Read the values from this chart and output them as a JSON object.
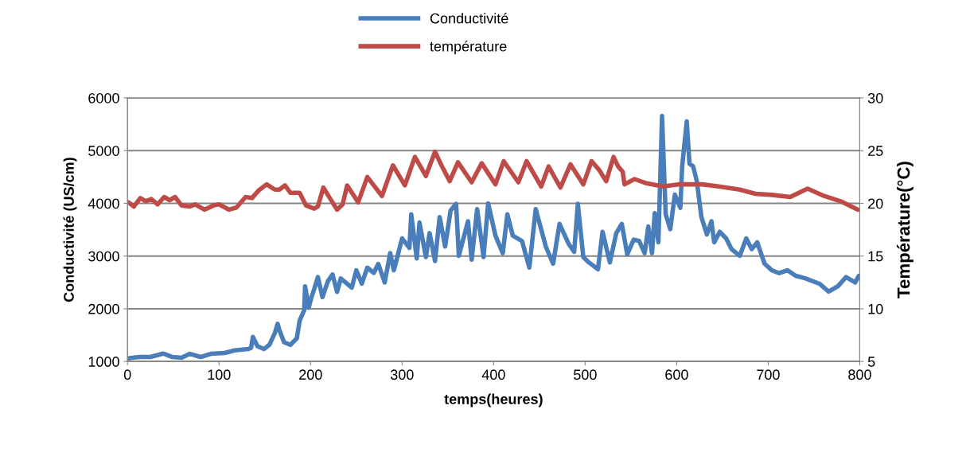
{
  "chart_data": {
    "type": "line",
    "xlabel": "temps(heures)",
    "ylabel": "Conductivité (US/cm)",
    "y2label": "Température(°C)",
    "xlim": [
      0,
      800
    ],
    "xticks": [
      0,
      100,
      200,
      300,
      400,
      500,
      600,
      700,
      800
    ],
    "ylim": [
      1000,
      6000
    ],
    "yticks": [
      1000,
      2000,
      3000,
      4000,
      5000,
      6000
    ],
    "y2lim": [
      5,
      30
    ],
    "y2ticks": [
      5,
      10,
      15,
      20,
      25,
      30
    ],
    "grid": "y",
    "legend": "top",
    "marker": "none",
    "line_style": "solid",
    "series": [
      {
        "name": "Conductivité",
        "color": "#4a7ebb",
        "x": [
          0,
          13,
          25,
          39,
          49,
          59,
          68,
          80,
          91,
          106,
          117,
          132,
          135,
          137,
          142,
          149,
          155,
          161,
          164,
          166,
          171,
          178,
          185,
          188,
          193,
          194,
          198,
          201,
          204,
          208,
          213,
          219,
          224,
          229,
          233,
          245,
          250,
          256,
          262,
          269,
          274,
          281,
          287,
          291,
          300,
          308,
          310,
          316,
          319,
          326,
          330,
          336,
          341,
          347,
          353,
          359,
          362,
          372,
          376,
          382,
          389,
          394,
          402,
          410,
          415,
          421,
          431,
          439,
          446,
          457,
          465,
          472,
          482,
          488,
          492,
          498,
          504,
          514,
          519,
          527,
          534,
          540,
          546,
          553,
          559,
          565,
          569,
          573,
          576,
          580,
          584,
          588,
          593,
          598,
          604,
          606,
          611,
          614,
          618,
          622,
          627,
          633,
          638,
          641,
          647,
          654,
          660,
          669,
          676,
          682,
          688,
          696,
          704,
          712,
          721,
          730,
          741,
          756,
          766,
          776,
          785,
          795,
          799
        ],
        "values": [
          1060,
          1085,
          1085,
          1150,
          1085,
          1070,
          1145,
          1085,
          1145,
          1160,
          1210,
          1235,
          1260,
          1465,
          1290,
          1235,
          1315,
          1540,
          1715,
          1590,
          1365,
          1315,
          1440,
          1770,
          1970,
          2425,
          2020,
          2220,
          2375,
          2600,
          2220,
          2525,
          2650,
          2320,
          2575,
          2400,
          2730,
          2475,
          2780,
          2680,
          2850,
          2500,
          3055,
          2730,
          3335,
          3155,
          3790,
          2955,
          3635,
          2980,
          3435,
          2905,
          3740,
          3180,
          3865,
          3990,
          3005,
          3660,
          2930,
          3890,
          2980,
          4000,
          3385,
          3055,
          3790,
          3385,
          3285,
          2780,
          3890,
          3180,
          2855,
          3610,
          3230,
          3080,
          3990,
          2980,
          2880,
          2750,
          3460,
          2880,
          3435,
          3610,
          3030,
          3310,
          3285,
          3055,
          3560,
          3055,
          3815,
          3260,
          5655,
          3790,
          3510,
          4165,
          3915,
          4700,
          5555,
          4750,
          4700,
          4420,
          3740,
          3410,
          3660,
          3260,
          3460,
          3335,
          3130,
          3005,
          3335,
          3130,
          3260,
          2855,
          2730,
          2675,
          2730,
          2625,
          2575,
          2475,
          2325,
          2425,
          2600,
          2500,
          2625
        ]
      },
      {
        "name": "température",
        "color": "#be4b48",
        "axis": "y2",
        "x": [
          1,
          7,
          14,
          20,
          26,
          33,
          40,
          46,
          52,
          59,
          68,
          74,
          84,
          94,
          100,
          111,
          119,
          129,
          136,
          143,
          152,
          161,
          166,
          172,
          178,
          188,
          195,
          204,
          208,
          214,
          221,
          229,
          235,
          240,
          252,
          262,
          278,
          290,
          303,
          314,
          326,
          336,
          343,
          352,
          361,
          376,
          387,
          402,
          411,
          427,
          436,
          452,
          460,
          473,
          484,
          498,
          507,
          515,
          523,
          531,
          536,
          541,
          543,
          554,
          567,
          585,
          602,
          628,
          646,
          669,
          686,
          704,
          724,
          743,
          761,
          779,
          798
        ],
        "values": [
          20.1,
          19.7,
          20.5,
          20.2,
          20.4,
          19.9,
          20.6,
          20.3,
          20.6,
          19.8,
          19.7,
          19.9,
          19.4,
          19.8,
          19.9,
          19.4,
          19.6,
          20.6,
          20.5,
          21.2,
          21.8,
          21.3,
          21.3,
          21.7,
          21.0,
          21.0,
          19.8,
          19.5,
          19.7,
          21.5,
          20.5,
          19.4,
          19.9,
          21.7,
          20.1,
          22.5,
          20.7,
          23.6,
          21.7,
          24.4,
          22.6,
          24.9,
          23.6,
          22.1,
          23.9,
          22.0,
          23.8,
          21.8,
          24.0,
          22.0,
          24.0,
          21.6,
          23.5,
          21.5,
          23.7,
          21.8,
          24.0,
          23.2,
          22.1,
          24.4,
          23.5,
          23.0,
          21.8,
          22.3,
          21.9,
          21.6,
          21.8,
          21.8,
          21.6,
          21.3,
          20.9,
          20.8,
          20.6,
          21.4,
          20.7,
          20.2,
          19.4
        ]
      }
    ]
  }
}
